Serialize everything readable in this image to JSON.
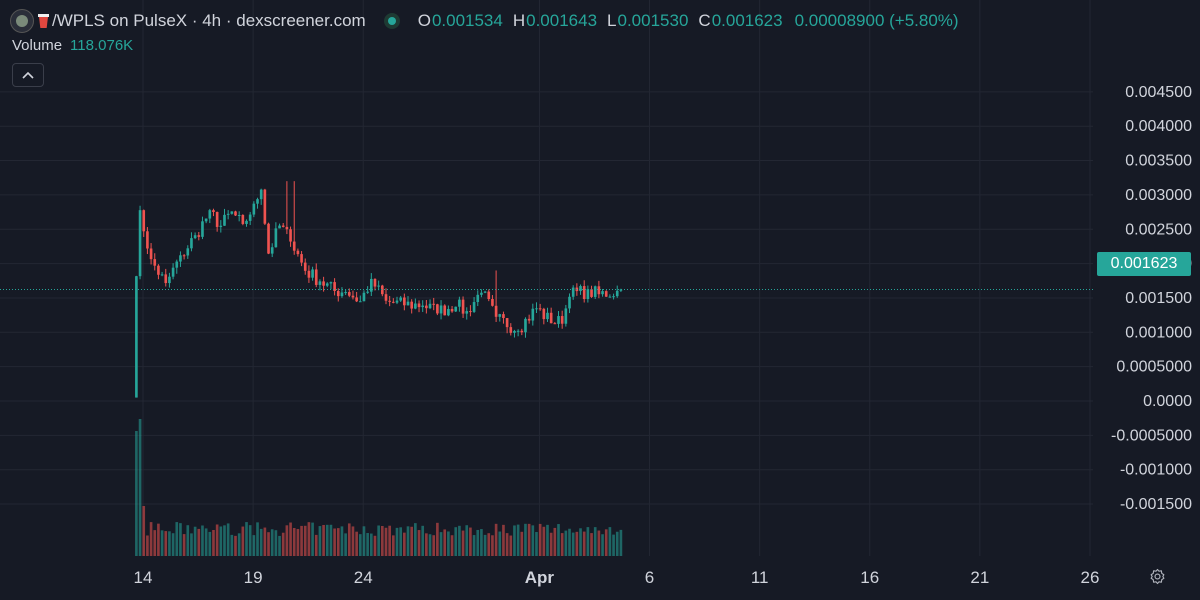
{
  "legend": {
    "title": "/WPLS on PulseX · 4h · dexscreener.com",
    "o_key": "O",
    "o_val": "0.001534",
    "h_key": "H",
    "h_val": "0.001643",
    "l_key": "L",
    "l_val": "0.001530",
    "c_key": "C",
    "c_val": "0.001623",
    "change": "0.00008900 (+5.80%)",
    "volume_key": "Volume",
    "volume_val": "118.076K"
  },
  "collapse_icon": "chevron-up-icon",
  "settings_icon": "gear-icon",
  "colors": {
    "up": "#26a69a",
    "down": "#ef5350",
    "bg": "#161a25",
    "grid": "#232733"
  },
  "current_price_label": "0.001623",
  "chart_data": {
    "type": "candlestick",
    "interval": "4h",
    "current_price": 0.001623,
    "y_ticks": [
      "0.004500",
      "0.004000",
      "0.003500",
      "0.003000",
      "0.002500",
      "0.002000",
      "0.001500",
      "0.001000",
      "0.0005000",
      "0.0000",
      "-0.0005000",
      "-0.001000",
      "-0.001500"
    ],
    "y_tick_values": [
      0.0045,
      0.004,
      0.0035,
      0.003,
      0.0025,
      0.002,
      0.0015,
      0.001,
      0.0005,
      0,
      -0.0005,
      -0.001,
      -0.0015
    ],
    "x_ticks": [
      "14",
      "19",
      "24",
      "Apr",
      "6",
      "11",
      "16",
      "21",
      "26"
    ],
    "x_tick_days": [
      14,
      19,
      24,
      32,
      37,
      42,
      47,
      52,
      57
    ],
    "x_tick_bold": [
      false,
      false,
      false,
      true,
      false,
      false,
      false,
      false,
      false
    ],
    "start_day": 13.7,
    "candle_hours": 4,
    "close_path": [
      {
        "close": 0.00185,
        "steps": 1
      },
      {
        "close": 0.00275,
        "steps": 1
      },
      {
        "close": 0.00205,
        "steps": 3
      },
      {
        "close": 0.0017,
        "steps": 4
      },
      {
        "close": 0.0021,
        "steps": 4
      },
      {
        "close": 0.0024,
        "steps": 4
      },
      {
        "close": 0.00275,
        "steps": 4
      },
      {
        "close": 0.00255,
        "steps": 3
      },
      {
        "close": 0.00275,
        "steps": 3
      },
      {
        "close": 0.00255,
        "steps": 3
      },
      {
        "close": 0.00285,
        "steps": 3
      },
      {
        "close": 0.0031,
        "steps": 2
      },
      {
        "close": 0.00215,
        "steps": 2
      },
      {
        "close": 0.00255,
        "steps": 3
      },
      {
        "close": 0.00235,
        "steps": 3
      },
      {
        "close": 0.0019,
        "steps": 4
      },
      {
        "close": 0.00175,
        "steps": 4
      },
      {
        "close": 0.0016,
        "steps": 4
      },
      {
        "close": 0.0016,
        "steps": 3
      },
      {
        "close": 0.00145,
        "steps": 4
      },
      {
        "close": 0.00175,
        "steps": 3
      },
      {
        "close": 0.00145,
        "steps": 4
      },
      {
        "close": 0.0014,
        "steps": 5
      },
      {
        "close": 0.0014,
        "steps": 5
      },
      {
        "close": 0.0013,
        "steps": 4
      },
      {
        "close": 0.0014,
        "steps": 5
      },
      {
        "close": 0.0013,
        "steps": 3
      },
      {
        "close": 0.0016,
        "steps": 4
      },
      {
        "close": 0.0012,
        "steps": 4
      },
      {
        "close": 0.00105,
        "steps": 6
      },
      {
        "close": 0.00135,
        "steps": 5
      },
      {
        "close": 0.00115,
        "steps": 4
      },
      {
        "close": 0.00115,
        "steps": 3
      },
      {
        "close": 0.00155,
        "steps": 2
      },
      {
        "close": 0.0016,
        "steps": 5
      },
      {
        "close": 0.00155,
        "steps": 3
      },
      {
        "close": 0.0016,
        "steps": 5
      }
    ],
    "open_first": 5e-05,
    "spike_highs": [
      {
        "index": 41,
        "high": 0.0032
      },
      {
        "index": 43,
        "high": 0.0032
      },
      {
        "index": 98,
        "high": 0.0019
      }
    ],
    "volume_max_label": "volume bars"
  }
}
